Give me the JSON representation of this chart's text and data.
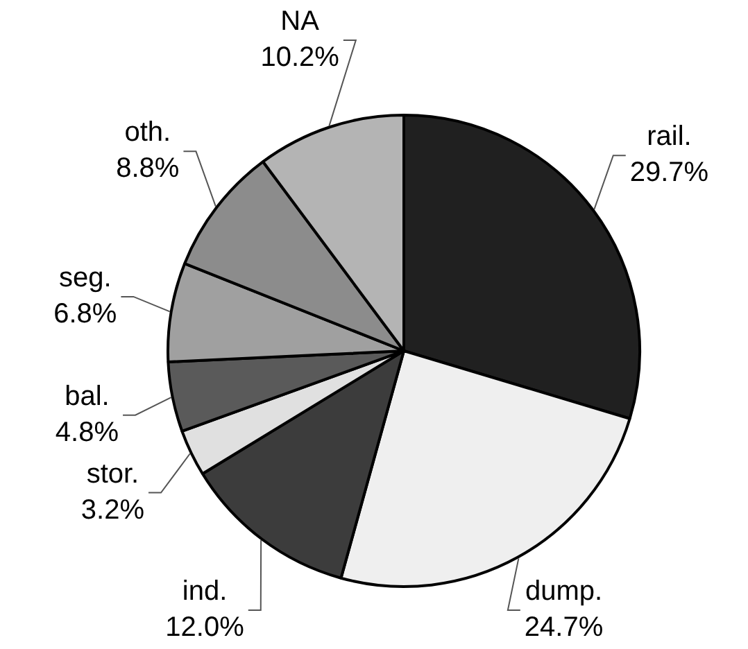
{
  "chart_data": {
    "type": "pie",
    "categories": [
      "rail.",
      "dump.",
      "ind.",
      "stor.",
      "bal.",
      "seg.",
      "oth.",
      "NA"
    ],
    "values": [
      29.7,
      24.7,
      12.0,
      3.2,
      4.8,
      6.8,
      8.8,
      10.2
    ],
    "value_labels": [
      "29.7%",
      "24.7%",
      "12.0%",
      "3.2%",
      "4.8%",
      "6.8%",
      "8.8%",
      "10.2%"
    ],
    "colors": [
      "#202020",
      "#efefef",
      "#3c3c3c",
      "#e0e0e0",
      "#5a5a5a",
      "#a0a0a0",
      "#8c8c8c",
      "#b4b4b4"
    ]
  }
}
